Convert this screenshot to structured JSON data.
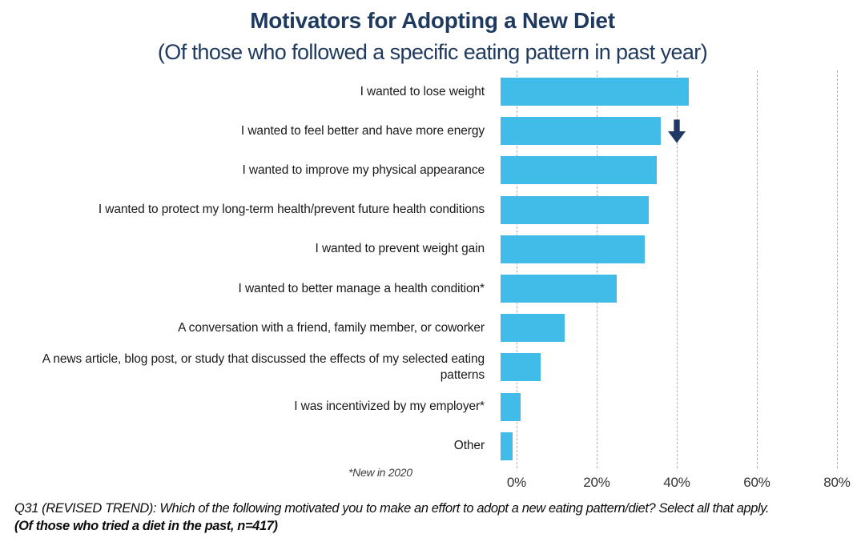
{
  "header": {
    "title": "Motivators for Adopting a New Diet",
    "subtitle": "(Of those who followed a specific eating pattern in past year)"
  },
  "chart_data": {
    "type": "bar",
    "orientation": "horizontal",
    "title": "Motivators for Adopting a New Diet",
    "subtitle": "(Of those who followed a specific eating pattern in past year)",
    "categories": [
      "I wanted to lose weight",
      "I wanted to feel better and have more energy",
      "I wanted to improve my physical appearance",
      "I wanted to protect my long-term health/prevent future health conditions",
      "I wanted to prevent weight gain",
      "I wanted to better manage a health condition*",
      "A conversation with a friend, family member, or coworker",
      "A news article, blog post, or study that discussed the effects of my selected eating patterns",
      "I was incentivized by my employer*",
      "Other"
    ],
    "values": [
      47,
      40,
      39,
      37,
      36,
      29,
      16,
      10,
      5,
      3
    ],
    "unit": "%",
    "xlim": [
      0,
      80
    ],
    "x_ticks": [
      "0%",
      "20%",
      "40%",
      "60%",
      "80%"
    ],
    "x_tick_values": [
      0,
      20,
      40,
      60,
      80
    ],
    "grid": "vertical-dashed",
    "legend": "none",
    "bar_color": "#41bce9",
    "annotations": [
      {
        "row_index": 1,
        "type": "down-arrow",
        "color": "#1f3864"
      }
    ]
  },
  "footnotes": {
    "new_in_2020": "*New in 2020",
    "question": "Q31 (REVISED TREND): Which of the following motivated you to make an effort to adopt a new eating pattern/diet?  Select all that apply.",
    "base": "(Of those who tried a diet in the past, n=417)"
  }
}
